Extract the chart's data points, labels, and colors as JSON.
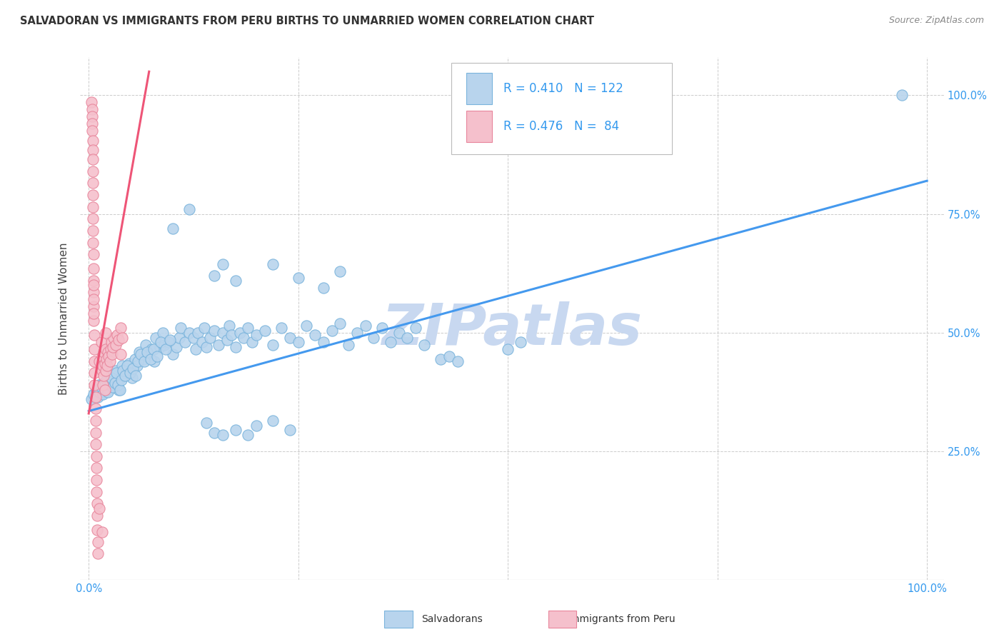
{
  "title": "SALVADORAN VS IMMIGRANTS FROM PERU BIRTHS TO UNMARRIED WOMEN CORRELATION CHART",
  "source": "Source: ZipAtlas.com",
  "ylabel": "Births to Unmarried Women",
  "xlim": [
    -0.01,
    1.02
  ],
  "ylim": [
    -0.02,
    1.08
  ],
  "blue_color": "#7ab4dc",
  "blue_face": "#b8d4ed",
  "pink_color": "#e8869c",
  "pink_face": "#f5c0cc",
  "blue_r": 0.41,
  "blue_n": 122,
  "pink_r": 0.476,
  "pink_n": 84,
  "text_color": "#3399ee",
  "watermark": "ZIPatlas",
  "watermark_color": "#c8d8f0",
  "grid_color": "#cccccc",
  "title_color": "#333333",
  "source_color": "#888888",
  "blue_trend": [
    0.0,
    0.335,
    1.0,
    0.82
  ],
  "pink_trend": [
    0.0,
    0.33,
    0.072,
    1.05
  ],
  "blue_points": [
    [
      0.005,
      0.365
    ],
    [
      0.008,
      0.375
    ],
    [
      0.01,
      0.38
    ],
    [
      0.012,
      0.39
    ],
    [
      0.014,
      0.37
    ],
    [
      0.016,
      0.385
    ],
    [
      0.018,
      0.395
    ],
    [
      0.02,
      0.375
    ],
    [
      0.022,
      0.4
    ],
    [
      0.024,
      0.38
    ],
    [
      0.026,
      0.395
    ],
    [
      0.028,
      0.41
    ],
    [
      0.03,
      0.385
    ],
    [
      0.032,
      0.42
    ],
    [
      0.034,
      0.395
    ],
    [
      0.036,
      0.38
    ],
    [
      0.038,
      0.405
    ],
    [
      0.04,
      0.43
    ],
    [
      0.042,
      0.415
    ],
    [
      0.045,
      0.425
    ],
    [
      0.048,
      0.435
    ],
    [
      0.05,
      0.42
    ],
    [
      0.052,
      0.405
    ],
    [
      0.055,
      0.445
    ],
    [
      0.058,
      0.43
    ],
    [
      0.06,
      0.46
    ],
    [
      0.065,
      0.445
    ],
    [
      0.068,
      0.475
    ],
    [
      0.07,
      0.45
    ],
    [
      0.075,
      0.465
    ],
    [
      0.078,
      0.44
    ],
    [
      0.08,
      0.49
    ],
    [
      0.085,
      0.47
    ],
    [
      0.088,
      0.5
    ],
    [
      0.09,
      0.475
    ],
    [
      0.095,
      0.48
    ],
    [
      0.1,
      0.455
    ],
    [
      0.105,
      0.47
    ],
    [
      0.108,
      0.49
    ],
    [
      0.11,
      0.51
    ],
    [
      0.115,
      0.48
    ],
    [
      0.12,
      0.5
    ],
    [
      0.125,
      0.49
    ],
    [
      0.128,
      0.465
    ],
    [
      0.13,
      0.5
    ],
    [
      0.135,
      0.48
    ],
    [
      0.138,
      0.51
    ],
    [
      0.14,
      0.47
    ],
    [
      0.145,
      0.49
    ],
    [
      0.15,
      0.505
    ],
    [
      0.155,
      0.475
    ],
    [
      0.16,
      0.5
    ],
    [
      0.165,
      0.485
    ],
    [
      0.168,
      0.515
    ],
    [
      0.17,
      0.495
    ],
    [
      0.175,
      0.47
    ],
    [
      0.18,
      0.5
    ],
    [
      0.185,
      0.49
    ],
    [
      0.19,
      0.51
    ],
    [
      0.195,
      0.48
    ],
    [
      0.2,
      0.495
    ],
    [
      0.21,
      0.505
    ],
    [
      0.22,
      0.475
    ],
    [
      0.23,
      0.51
    ],
    [
      0.24,
      0.49
    ],
    [
      0.25,
      0.48
    ],
    [
      0.26,
      0.515
    ],
    [
      0.27,
      0.495
    ],
    [
      0.28,
      0.48
    ],
    [
      0.29,
      0.505
    ],
    [
      0.3,
      0.52
    ],
    [
      0.31,
      0.475
    ],
    [
      0.32,
      0.5
    ],
    [
      0.33,
      0.515
    ],
    [
      0.34,
      0.49
    ],
    [
      0.35,
      0.51
    ],
    [
      0.36,
      0.48
    ],
    [
      0.37,
      0.5
    ],
    [
      0.38,
      0.49
    ],
    [
      0.39,
      0.51
    ],
    [
      0.4,
      0.475
    ],
    [
      0.42,
      0.445
    ],
    [
      0.43,
      0.45
    ],
    [
      0.44,
      0.44
    ],
    [
      0.5,
      0.465
    ],
    [
      0.515,
      0.48
    ],
    [
      0.003,
      0.36
    ],
    [
      0.006,
      0.37
    ],
    [
      0.009,
      0.38
    ],
    [
      0.011,
      0.365
    ],
    [
      0.013,
      0.375
    ],
    [
      0.015,
      0.385
    ],
    [
      0.017,
      0.37
    ],
    [
      0.019,
      0.39
    ],
    [
      0.021,
      0.4
    ],
    [
      0.023,
      0.375
    ],
    [
      0.025,
      0.39
    ],
    [
      0.027,
      0.405
    ],
    [
      0.029,
      0.385
    ],
    [
      0.031,
      0.395
    ],
    [
      0.033,
      0.415
    ],
    [
      0.035,
      0.39
    ],
    [
      0.037,
      0.38
    ],
    [
      0.039,
      0.4
    ],
    [
      0.041,
      0.42
    ],
    [
      0.043,
      0.41
    ],
    [
      0.046,
      0.43
    ],
    [
      0.049,
      0.415
    ],
    [
      0.053,
      0.425
    ],
    [
      0.056,
      0.41
    ],
    [
      0.059,
      0.44
    ],
    [
      0.062,
      0.455
    ],
    [
      0.066,
      0.44
    ],
    [
      0.07,
      0.46
    ],
    [
      0.074,
      0.445
    ],
    [
      0.077,
      0.465
    ],
    [
      0.082,
      0.45
    ],
    [
      0.086,
      0.48
    ],
    [
      0.092,
      0.465
    ],
    [
      0.097,
      0.485
    ],
    [
      0.14,
      0.31
    ],
    [
      0.15,
      0.29
    ],
    [
      0.16,
      0.285
    ],
    [
      0.175,
      0.295
    ],
    [
      0.19,
      0.285
    ],
    [
      0.2,
      0.305
    ],
    [
      0.22,
      0.315
    ],
    [
      0.24,
      0.295
    ],
    [
      0.15,
      0.62
    ],
    [
      0.16,
      0.645
    ],
    [
      0.175,
      0.61
    ],
    [
      0.22,
      0.645
    ],
    [
      0.25,
      0.615
    ],
    [
      0.28,
      0.595
    ],
    [
      0.3,
      0.63
    ],
    [
      0.1,
      0.72
    ],
    [
      0.12,
      0.76
    ],
    [
      0.97,
      1.0
    ]
  ],
  "pink_points": [
    [
      0.003,
      0.985
    ],
    [
      0.004,
      0.97
    ],
    [
      0.004,
      0.955
    ],
    [
      0.004,
      0.94
    ],
    [
      0.004,
      0.925
    ],
    [
      0.005,
      0.905
    ],
    [
      0.005,
      0.885
    ],
    [
      0.005,
      0.865
    ],
    [
      0.005,
      0.84
    ],
    [
      0.005,
      0.815
    ],
    [
      0.005,
      0.79
    ],
    [
      0.005,
      0.765
    ],
    [
      0.005,
      0.74
    ],
    [
      0.005,
      0.715
    ],
    [
      0.005,
      0.69
    ],
    [
      0.006,
      0.665
    ],
    [
      0.006,
      0.635
    ],
    [
      0.006,
      0.61
    ],
    [
      0.006,
      0.585
    ],
    [
      0.006,
      0.555
    ],
    [
      0.006,
      0.525
    ],
    [
      0.007,
      0.495
    ],
    [
      0.007,
      0.465
    ],
    [
      0.007,
      0.44
    ],
    [
      0.007,
      0.415
    ],
    [
      0.007,
      0.39
    ],
    [
      0.008,
      0.365
    ],
    [
      0.008,
      0.34
    ],
    [
      0.008,
      0.315
    ],
    [
      0.008,
      0.29
    ],
    [
      0.008,
      0.265
    ],
    [
      0.009,
      0.24
    ],
    [
      0.009,
      0.215
    ],
    [
      0.009,
      0.19
    ],
    [
      0.009,
      0.165
    ],
    [
      0.01,
      0.14
    ],
    [
      0.01,
      0.115
    ],
    [
      0.01,
      0.085
    ],
    [
      0.011,
      0.06
    ],
    [
      0.011,
      0.035
    ],
    [
      0.013,
      0.44
    ],
    [
      0.015,
      0.48
    ],
    [
      0.016,
      0.42
    ],
    [
      0.016,
      0.45
    ],
    [
      0.017,
      0.39
    ],
    [
      0.017,
      0.43
    ],
    [
      0.018,
      0.41
    ],
    [
      0.018,
      0.46
    ],
    [
      0.019,
      0.38
    ],
    [
      0.019,
      0.435
    ],
    [
      0.02,
      0.42
    ],
    [
      0.02,
      0.465
    ],
    [
      0.021,
      0.445
    ],
    [
      0.022,
      0.43
    ],
    [
      0.023,
      0.46
    ],
    [
      0.024,
      0.45
    ],
    [
      0.025,
      0.44
    ],
    [
      0.026,
      0.465
    ],
    [
      0.027,
      0.48
    ],
    [
      0.028,
      0.455
    ],
    [
      0.029,
      0.47
    ],
    [
      0.03,
      0.49
    ],
    [
      0.032,
      0.475
    ],
    [
      0.034,
      0.495
    ],
    [
      0.036,
      0.485
    ],
    [
      0.038,
      0.51
    ],
    [
      0.04,
      0.49
    ],
    [
      0.006,
      0.54
    ],
    [
      0.006,
      0.57
    ],
    [
      0.006,
      0.6
    ],
    [
      0.013,
      0.13
    ],
    [
      0.016,
      0.08
    ],
    [
      0.038,
      0.455
    ],
    [
      0.02,
      0.5
    ]
  ]
}
